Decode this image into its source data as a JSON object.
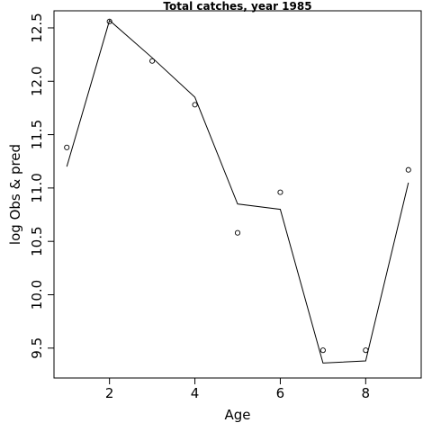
{
  "chart_data": {
    "type": "line",
    "title": "Total catches, year 1985",
    "xlabel": "Age",
    "ylabel": "log Obs & pred",
    "xlim": [
      0.7,
      9.3
    ],
    "ylim": [
      9.22,
      12.66
    ],
    "x_ticks": [
      2,
      4,
      6,
      8
    ],
    "y_ticks": [
      9.5,
      10.0,
      10.5,
      11.0,
      11.5,
      12.0,
      12.5
    ],
    "y_tick_labels": [
      "9.5",
      "10.0",
      "10.5",
      "11.0",
      "11.5",
      "12.0",
      "12.5"
    ],
    "grid": false,
    "legend": "none",
    "x": [
      1,
      2,
      3,
      4,
      5,
      6,
      7,
      8,
      9
    ],
    "series": [
      {
        "type": "scatter",
        "marker": "open-circle",
        "values": [
          11.38,
          12.56,
          12.19,
          11.78,
          10.58,
          10.96,
          9.48,
          9.48,
          11.17
        ]
      },
      {
        "type": "line",
        "values": [
          11.2,
          12.57,
          12.22,
          11.85,
          10.85,
          10.8,
          9.36,
          9.38,
          11.05
        ]
      }
    ]
  }
}
